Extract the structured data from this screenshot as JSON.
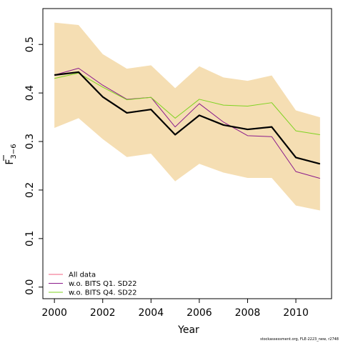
{
  "chart_data": {
    "type": "line",
    "xlabel": "Year",
    "ylabel_main": "F",
    "ylabel_sub": "3−6",
    "xlim": [
      2000,
      2011
    ],
    "ylim": [
      0,
      0.55
    ],
    "xticks": [
      2000,
      2002,
      2004,
      2006,
      2008,
      2010
    ],
    "xtick_labels": [
      "2000",
      "2002",
      "2004",
      "2006",
      "2008",
      "2010"
    ],
    "yticks": [
      0.0,
      0.1,
      0.2,
      0.3,
      0.4,
      0.5
    ],
    "ytick_labels": [
      "0.0",
      "0.1",
      "0.2",
      "0.3",
      "0.4",
      "0.5"
    ],
    "x": [
      2000,
      2001,
      2002,
      2003,
      2004,
      2005,
      2006,
      2007,
      2008,
      2009,
      2010,
      2011
    ],
    "band": {
      "color": "#f5deb3",
      "upper": [
        0.545,
        0.54,
        0.48,
        0.45,
        0.457,
        0.41,
        0.455,
        0.432,
        0.425,
        0.436,
        0.364,
        0.35
      ],
      "lower": [
        0.328,
        0.348,
        0.305,
        0.268,
        0.275,
        0.218,
        0.254,
        0.236,
        0.225,
        0.225,
        0.168,
        0.158
      ]
    },
    "series": [
      {
        "name": "All data",
        "color": "#000000",
        "width": 2.2,
        "legend": false,
        "values": [
          0.437,
          0.443,
          0.392,
          0.359,
          0.366,
          0.314,
          0.354,
          0.334,
          0.325,
          0.33,
          0.267,
          0.254
        ]
      },
      {
        "name": "w.o. BITS Q1. SD22",
        "color": "#8b1a8b",
        "width": 1,
        "legend": true,
        "values": [
          0.437,
          0.451,
          0.416,
          0.387,
          0.391,
          0.33,
          0.378,
          0.34,
          0.312,
          0.31,
          0.238,
          0.224
        ]
      },
      {
        "name": "w.o. BITS Q4. SD22",
        "color": "#7fd321",
        "width": 1,
        "legend": true,
        "values": [
          0.43,
          0.441,
          0.412,
          0.386,
          0.391,
          0.348,
          0.387,
          0.375,
          0.373,
          0.38,
          0.322,
          0.314
        ]
      }
    ],
    "legend": {
      "position": "bottom-left",
      "entries": [
        {
          "label": "All data",
          "color": "#f06080"
        },
        {
          "label": "w.o. BITS Q1. SD22",
          "color": "#8b1a8b"
        },
        {
          "label": "w.o. BITS Q4. SD22",
          "color": "#7fd321"
        }
      ]
    },
    "grid": false
  },
  "footer": "stockassessment.org, FLE-2223_new, r2748"
}
